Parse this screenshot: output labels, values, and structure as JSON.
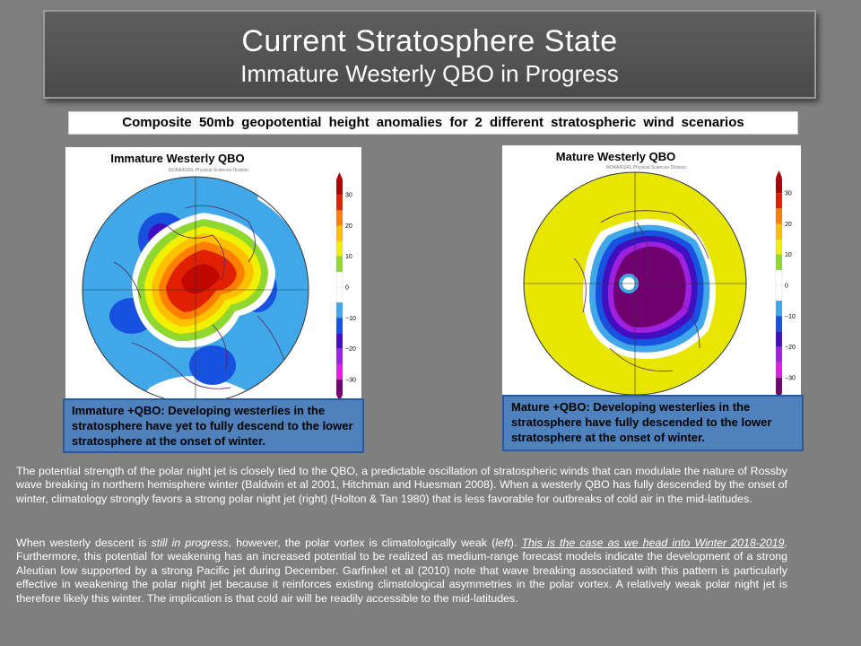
{
  "header": {
    "title": "Current Stratosphere State",
    "subtitle": "Immature Westerly QBO in Progress"
  },
  "caption": "Composite 50mb geopotential height anomalies for 2 different stratospheric wind scenarios",
  "panels": {
    "left": {
      "title": "Immature Westerly QBO",
      "credit": "NOAA/ESRL Physical Sciences Division",
      "description": "Immature +QBO: Developing westerlies in the stratosphere have yet to fully descend to the lower stratosphere at the onset of winter."
    },
    "right": {
      "title": "Mature Westerly QBO",
      "credit": "NOAA/ESRL Physical Sciences Division",
      "description": "Mature +QBO: Developing westerlies in the stratosphere have fully descended to the lower stratosphere at the onset of winter."
    }
  },
  "colorbar": {
    "ticks": [
      "30",
      "20",
      "10",
      "0",
      "−10",
      "−20",
      "−30"
    ],
    "colors": [
      "#a80000",
      "#e02000",
      "#ff8000",
      "#ffc000",
      "#f0f000",
      "#90d830",
      "#ffffff",
      "#ffffff",
      "#40a8e8",
      "#1850e0",
      "#4010c0",
      "#a020e0",
      "#e020e0",
      "#700070"
    ]
  },
  "body": {
    "p1": "The potential strength of the polar night jet is closely tied to the QBO, a predictable oscillation of stratospheric winds that can modulate the nature of Rossby wave breaking in northern hemisphere winter (Baldwin et al 2001, Hitchman and Huesman 2008). When a westerly QBO has fully descended by the onset of winter, climatology strongly favors a strong polar night jet (right) (Holton & Tan 1980) that is less favorable for outbreaks of cold air in the mid-latitudes.",
    "p2_a": "When westerly descent is ",
    "p2_b": "still in progress",
    "p2_c": ", however, the polar vortex is climatologically weak (",
    "p2_d": "left",
    "p2_e": "). ",
    "p2_f": "This is the case as we head into Winter 2018-2019",
    "p2_g": ". Furthermore, this potential for weakening has an increased potential to be realized as medium-range forecast models indicate the development of a strong Aleutian low supported by a strong Pacific jet during December. Garfinkel et al (2010) note that wave breaking associated with this pattern is particularly effective in weakening the polar night jet because it reinforces existing climatological asymmetries in the polar vortex. A relatively weak polar night jet is therefore likely this winter. The implication is that cold air will be readily accessible to the mid-latitudes."
  }
}
